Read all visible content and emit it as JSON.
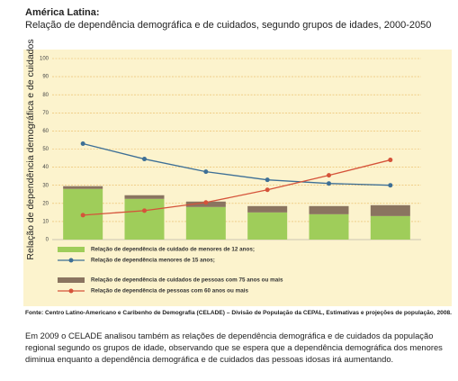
{
  "header": {
    "title": "América Latina:",
    "subtitle": "Relação de dependência demográfica e de cuidados, segundo grupos de idades, 2000-2050"
  },
  "chart_data": {
    "type": "bar",
    "stacked": true,
    "ylabel": "Relação de dependência demográfica e de cuidados",
    "categories": [
      null,
      null,
      null,
      null,
      null,
      null
    ],
    "ylim": [
      0,
      100
    ],
    "yticks": [
      0,
      10,
      20,
      30,
      40,
      50,
      60,
      70,
      80,
      90,
      100
    ],
    "grid": true,
    "series": [
      {
        "name": "Relação de dependência de cuidado de menores de 12 anos;",
        "type": "bar",
        "color": "#9fcd5a",
        "values": [
          28,
          22.5,
          18,
          15,
          14,
          13
        ]
      },
      {
        "name": "Relação de dependência menores de 15 anos;",
        "type": "line",
        "color": "#3d6f96",
        "values": [
          53,
          44.5,
          37.5,
          33,
          31,
          30
        ]
      },
      {
        "name": "Relação de dependência de cuidados de pessoas com 75 anos ou mais",
        "type": "bar",
        "color": "#8a7460",
        "values": [
          1.5,
          2,
          3,
          3.5,
          4.5,
          6
        ]
      },
      {
        "name": "Relação de dependência de pessoas com 60 anos ou mais",
        "type": "line",
        "color": "#d5533a",
        "values": [
          13.5,
          16,
          20.5,
          27.5,
          35.5,
          44
        ]
      }
    ]
  },
  "footer": {
    "source": "Fonte: Centro Latino-Americano e Caribenho de Demografia (CELADE) – Divisão de População da CEPAL, Estimativas e projeções de população, 2008.",
    "text": "Em 2009 o CELADE analisou também as relações de dependência demográfica e de cuidados da população regional segundo os grupos de idade, observando que se espera que a dependência demográfica dos menores diminua enquanto a dependência demográfica e de cuidados das pessoas idosas irá aumentando."
  }
}
